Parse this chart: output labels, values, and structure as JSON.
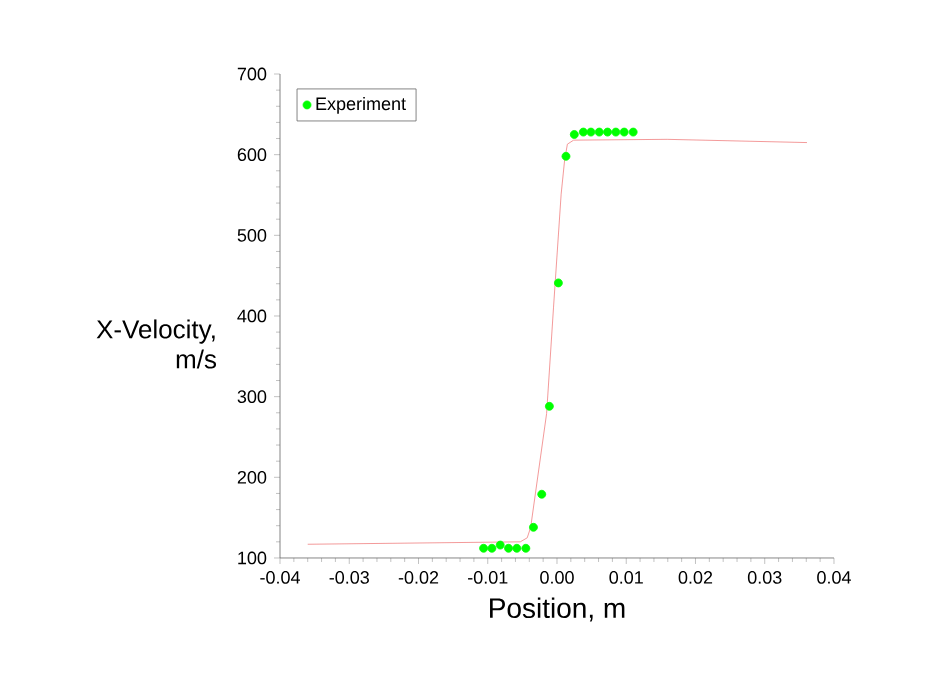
{
  "chart_data": {
    "type": "scatter",
    "xlabel": "Position, m",
    "ylabel": "X-Velocity, m/s",
    "xlim": [
      -0.04,
      0.04
    ],
    "ylim": [
      100,
      700
    ],
    "xticks": [
      -0.04,
      -0.03,
      -0.02,
      -0.01,
      {
        "value": 0,
        "label": "0.00"
      },
      0.01,
      0.02,
      0.03,
      0.04
    ],
    "yticks": [
      100,
      200,
      300,
      400,
      500,
      600,
      700
    ],
    "legend": "top left",
    "grid": false,
    "series": [
      {
        "name": "Experiment",
        "color": "#00ff00",
        "marker": "circle",
        "x": [
          -0.0106,
          -0.0094,
          -0.0082,
          -0.007,
          -0.0058,
          -0.0045,
          -0.0034,
          -0.0022,
          -0.0011,
          0.0002,
          0.0013,
          0.0025,
          0.0038,
          0.0049,
          0.0061,
          0.0073,
          0.0085,
          0.0097,
          0.011
        ],
        "values": [
          112,
          112,
          116,
          112,
          112,
          112,
          138,
          179,
          288,
          441,
          598,
          625,
          628,
          628,
          628,
          628,
          628,
          628,
          628
        ]
      },
      {
        "type": "line",
        "color": "#f08080",
        "marker": "none",
        "x": [
          -0.036,
          -0.0053,
          -0.0043,
          -0.0038,
          -0.0015,
          -0.0005,
          0.0006,
          0.0011,
          0.0015,
          0.0024,
          0.0159,
          0.0361
        ],
        "values": [
          117,
          120,
          125,
          138,
          279,
          411,
          551,
          593,
          613,
          618,
          619,
          615
        ]
      }
    ]
  }
}
